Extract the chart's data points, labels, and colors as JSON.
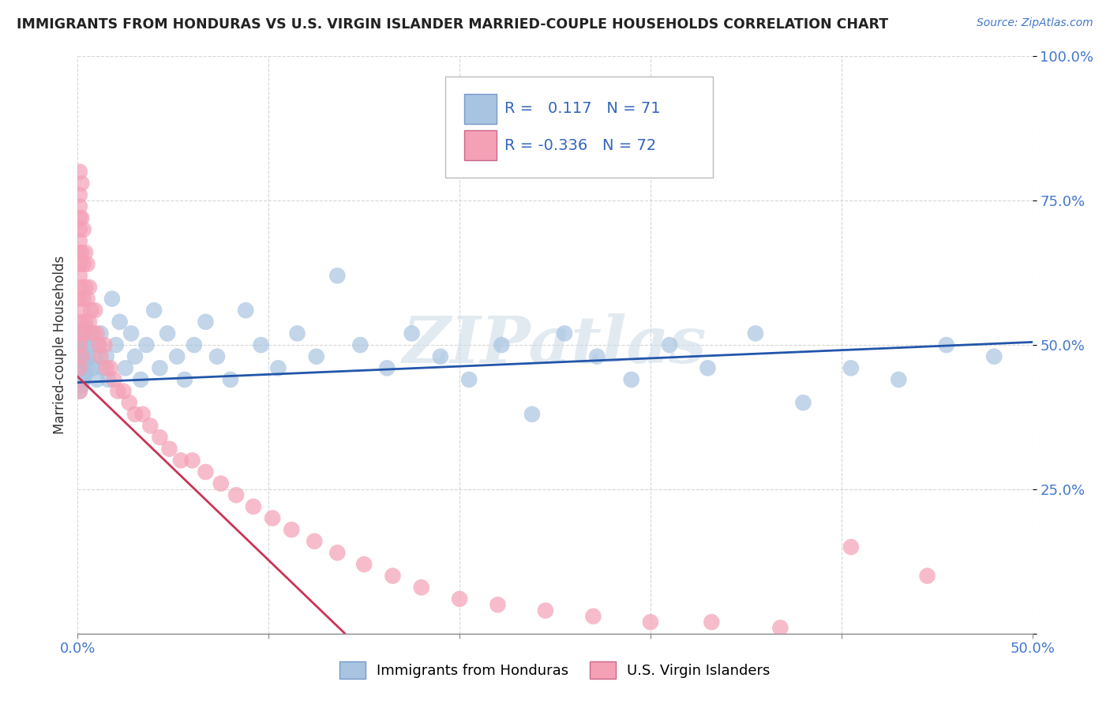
{
  "title": "IMMIGRANTS FROM HONDURAS VS U.S. VIRGIN ISLANDER MARRIED-COUPLE HOUSEHOLDS CORRELATION CHART",
  "source": "Source: ZipAtlas.com",
  "ylabel": "Married-couple Households",
  "r_blue": 0.117,
  "n_blue": 71,
  "r_pink": -0.336,
  "n_pink": 72,
  "xmin": 0.0,
  "xmax": 0.5,
  "ymin": 0.0,
  "ymax": 1.0,
  "yticks": [
    0.0,
    0.25,
    0.5,
    0.75,
    1.0
  ],
  "ytick_labels": [
    "",
    "25.0%",
    "50.0%",
    "75.0%",
    "100.0%"
  ],
  "xticks": [
    0.0,
    0.1,
    0.2,
    0.3,
    0.4,
    0.5
  ],
  "xtick_labels": [
    "0.0%",
    "",
    "",
    "",
    "",
    "50.0%"
  ],
  "blue_color": "#a8c4e0",
  "pink_color": "#f4a0b5",
  "blue_line_color": "#2255aa",
  "pink_line_color": "#cc3355",
  "pink_dash_color": "#f0a0b8",
  "watermark": "ZIPatlas",
  "legend_blue": "Immigrants from Honduras",
  "legend_pink": "U.S. Virgin Islanders",
  "blue_x": [
    0.001,
    0.001,
    0.001,
    0.001,
    0.001,
    0.001,
    0.002,
    0.002,
    0.002,
    0.002,
    0.002,
    0.003,
    0.003,
    0.003,
    0.003,
    0.004,
    0.004,
    0.004,
    0.005,
    0.005,
    0.006,
    0.007,
    0.008,
    0.009,
    0.01,
    0.011,
    0.012,
    0.013,
    0.015,
    0.016,
    0.018,
    0.02,
    0.022,
    0.025,
    0.028,
    0.03,
    0.033,
    0.036,
    0.04,
    0.043,
    0.047,
    0.052,
    0.056,
    0.061,
    0.067,
    0.073,
    0.08,
    0.088,
    0.096,
    0.105,
    0.115,
    0.125,
    0.136,
    0.148,
    0.162,
    0.175,
    0.19,
    0.205,
    0.222,
    0.238,
    0.255,
    0.272,
    0.29,
    0.31,
    0.33,
    0.355,
    0.38,
    0.405,
    0.43,
    0.455,
    0.48
  ],
  "blue_y": [
    0.44,
    0.46,
    0.48,
    0.5,
    0.42,
    0.52,
    0.45,
    0.47,
    0.43,
    0.49,
    0.51,
    0.46,
    0.48,
    0.44,
    0.5,
    0.47,
    0.45,
    0.53,
    0.46,
    0.48,
    0.5,
    0.52,
    0.46,
    0.48,
    0.44,
    0.5,
    0.52,
    0.46,
    0.48,
    0.44,
    0.58,
    0.5,
    0.54,
    0.46,
    0.52,
    0.48,
    0.44,
    0.5,
    0.56,
    0.46,
    0.52,
    0.48,
    0.44,
    0.5,
    0.54,
    0.48,
    0.44,
    0.56,
    0.5,
    0.46,
    0.52,
    0.48,
    0.62,
    0.5,
    0.46,
    0.52,
    0.48,
    0.44,
    0.5,
    0.38,
    0.52,
    0.48,
    0.44,
    0.5,
    0.46,
    0.52,
    0.4,
    0.46,
    0.44,
    0.5,
    0.48
  ],
  "pink_x": [
    0.001,
    0.001,
    0.001,
    0.001,
    0.001,
    0.001,
    0.001,
    0.001,
    0.001,
    0.001,
    0.001,
    0.001,
    0.001,
    0.001,
    0.002,
    0.002,
    0.002,
    0.002,
    0.002,
    0.002,
    0.002,
    0.003,
    0.003,
    0.003,
    0.003,
    0.004,
    0.004,
    0.004,
    0.005,
    0.005,
    0.006,
    0.006,
    0.007,
    0.008,
    0.009,
    0.01,
    0.011,
    0.012,
    0.014,
    0.015,
    0.017,
    0.019,
    0.021,
    0.024,
    0.027,
    0.03,
    0.034,
    0.038,
    0.043,
    0.048,
    0.054,
    0.06,
    0.067,
    0.075,
    0.083,
    0.092,
    0.102,
    0.112,
    0.124,
    0.136,
    0.15,
    0.165,
    0.18,
    0.2,
    0.22,
    0.245,
    0.27,
    0.3,
    0.332,
    0.368,
    0.405,
    0.445
  ],
  "pink_y": [
    0.8,
    0.74,
    0.7,
    0.66,
    0.62,
    0.58,
    0.54,
    0.5,
    0.46,
    0.42,
    0.76,
    0.72,
    0.68,
    0.64,
    0.78,
    0.72,
    0.66,
    0.6,
    0.56,
    0.52,
    0.48,
    0.7,
    0.64,
    0.58,
    0.52,
    0.66,
    0.6,
    0.54,
    0.64,
    0.58,
    0.6,
    0.54,
    0.56,
    0.52,
    0.56,
    0.52,
    0.5,
    0.48,
    0.5,
    0.46,
    0.46,
    0.44,
    0.42,
    0.42,
    0.4,
    0.38,
    0.38,
    0.36,
    0.34,
    0.32,
    0.3,
    0.3,
    0.28,
    0.26,
    0.24,
    0.22,
    0.2,
    0.18,
    0.16,
    0.14,
    0.12,
    0.1,
    0.08,
    0.06,
    0.05,
    0.04,
    0.03,
    0.02,
    0.02,
    0.01,
    0.15,
    0.1
  ],
  "blue_trend_x0": 0.0,
  "blue_trend_y0": 0.435,
  "blue_trend_x1": 0.5,
  "blue_trend_y1": 0.505,
  "pink_trend_x0": 0.0,
  "pink_trend_y0": 0.445,
  "pink_trend_x1": 0.14,
  "pink_trend_y1": 0.0
}
